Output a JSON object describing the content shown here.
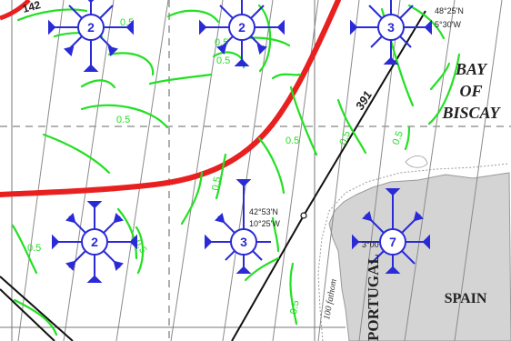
{
  "map": {
    "sea_name": [
      "BAY",
      "OF",
      "BISCAY"
    ],
    "countries": {
      "spain": "SPAIN",
      "portugal": "PORTUGAL"
    },
    "depth_line_label": "100 fathom",
    "route_label": "391",
    "corner_label": "142",
    "coordinates": {
      "top_right": [
        "48°25'N",
        "5°30'W"
      ],
      "center": [
        "42°53'N",
        "10°25'W"
      ],
      "right_fragment": "3°00"
    },
    "wind_roses": [
      {
        "value": "2"
      },
      {
        "value": "2"
      },
      {
        "value": "3"
      },
      {
        "value": "2"
      },
      {
        "value": "3"
      },
      {
        "value": "7"
      }
    ],
    "isoline_labels": [
      "0.5",
      "0.5",
      "0.5",
      "0.5",
      "0.5",
      "0.5",
      "0.5",
      "0.5",
      "0.5",
      "0.5",
      "0.5"
    ],
    "colors": {
      "rose": "#2a2ad6",
      "isoline": "#22e022",
      "front": "#e82020",
      "land": "#d4d4d4",
      "grid": "#8a8a8a",
      "route": "#111111"
    }
  }
}
